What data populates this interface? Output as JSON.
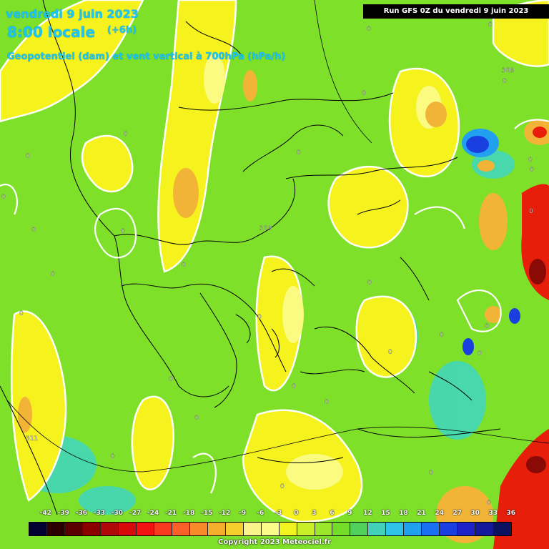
{
  "header": {
    "date_line": "vendredi 9 juin 2023",
    "time_line": "8:00 locale",
    "offset": "(+6h)",
    "parameter": "Geopotentiel (dam) et vent vertical à 700hPa (hPa/h)",
    "run": "Run GFS 0Z du vendredi 9 juin 2023"
  },
  "colors": {
    "base": "#7fe02a",
    "yellow": "#f6f21e",
    "light_yellow": "#fbfb82",
    "orange": "#f2b437",
    "red": "#e61e0a",
    "dark_red": "#8a0a05",
    "cyan": "#3ed6c2",
    "blue": "#1a3fe0",
    "contour": "#ffffff",
    "border": "#000000"
  },
  "geopotential_labels": [
    {
      "text": "309"
    },
    {
      "text": "309"
    },
    {
      "text": "311"
    }
  ],
  "zero_labels": [
    "0",
    "0",
    "0",
    "0",
    "0",
    "0",
    "0",
    "0",
    "0",
    "0",
    "0",
    "0",
    "0",
    "0",
    "0",
    "0",
    "0",
    "0",
    "0",
    "0",
    "0",
    "0",
    "0",
    "0",
    "0",
    "0",
    "0",
    "0",
    "0",
    "0"
  ],
  "legend": {
    "values": [
      "-42",
      "-39",
      "-36",
      "-33",
      "-30",
      "-27",
      "-24",
      "-21",
      "-18",
      "-15",
      "-12",
      "-9",
      "-6",
      "-3",
      "0",
      "3",
      "6",
      "9",
      "12",
      "15",
      "18",
      "21",
      "24",
      "27",
      "30",
      "33",
      "36"
    ],
    "colors": [
      "#000033",
      "#2a0000",
      "#5a0000",
      "#8a0000",
      "#b00808",
      "#d60a0a",
      "#f21212",
      "#f73a1e",
      "#f9602a",
      "#f98a2a",
      "#f4ae2c",
      "#f6cf2c",
      "#faf28a",
      "#fbfb8a",
      "#f3f320",
      "#c8ef28",
      "#9be82a",
      "#72dc28",
      "#4fd05a",
      "#42d1b8",
      "#2fc3ea",
      "#22a0f0",
      "#1a70f0",
      "#1a3fe0",
      "#1a22c8",
      "#14189a",
      "#0c1060"
    ]
  },
  "copyright": "Copyright 2023 Meteociel.fr"
}
